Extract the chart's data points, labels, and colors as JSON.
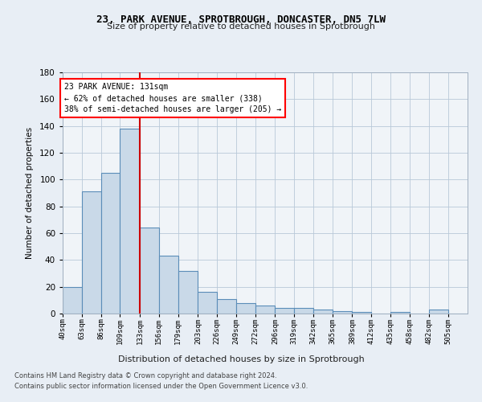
{
  "title1": "23, PARK AVENUE, SPROTBROUGH, DONCASTER, DN5 7LW",
  "title2": "Size of property relative to detached houses in Sprotbrough",
  "xlabel": "Distribution of detached houses by size in Sprotbrough",
  "ylabel": "Number of detached properties",
  "footer1": "Contains HM Land Registry data © Crown copyright and database right 2024.",
  "footer2": "Contains public sector information licensed under the Open Government Licence v3.0.",
  "annotation_line1": "23 PARK AVENUE: 131sqm",
  "annotation_line2": "← 62% of detached houses are smaller (338)",
  "annotation_line3": "38% of semi-detached houses are larger (205) →",
  "bar_color": "#c9d9e8",
  "bar_edge_color": "#5b8db8",
  "marker_color": "#cc0000",
  "categories": [
    "40sqm",
    "63sqm",
    "86sqm",
    "109sqm",
    "133sqm",
    "156sqm",
    "179sqm",
    "203sqm",
    "226sqm",
    "249sqm",
    "272sqm",
    "296sqm",
    "319sqm",
    "342sqm",
    "365sqm",
    "389sqm",
    "412sqm",
    "435sqm",
    "458sqm",
    "482sqm",
    "505sqm"
  ],
  "values": [
    20,
    91,
    105,
    138,
    64,
    43,
    32,
    16,
    11,
    8,
    6,
    4,
    4,
    3,
    2,
    1,
    0,
    1,
    0,
    3,
    0
  ],
  "bin_edges": [
    40,
    63,
    86,
    109,
    133,
    156,
    179,
    203,
    226,
    249,
    272,
    296,
    319,
    342,
    365,
    389,
    412,
    435,
    458,
    482,
    505,
    528
  ],
  "ylim": [
    0,
    180
  ],
  "yticks": [
    0,
    20,
    40,
    60,
    80,
    100,
    120,
    140,
    160,
    180
  ],
  "bg_color": "#e8eef5",
  "plot_bg_color": "#f0f4f8"
}
